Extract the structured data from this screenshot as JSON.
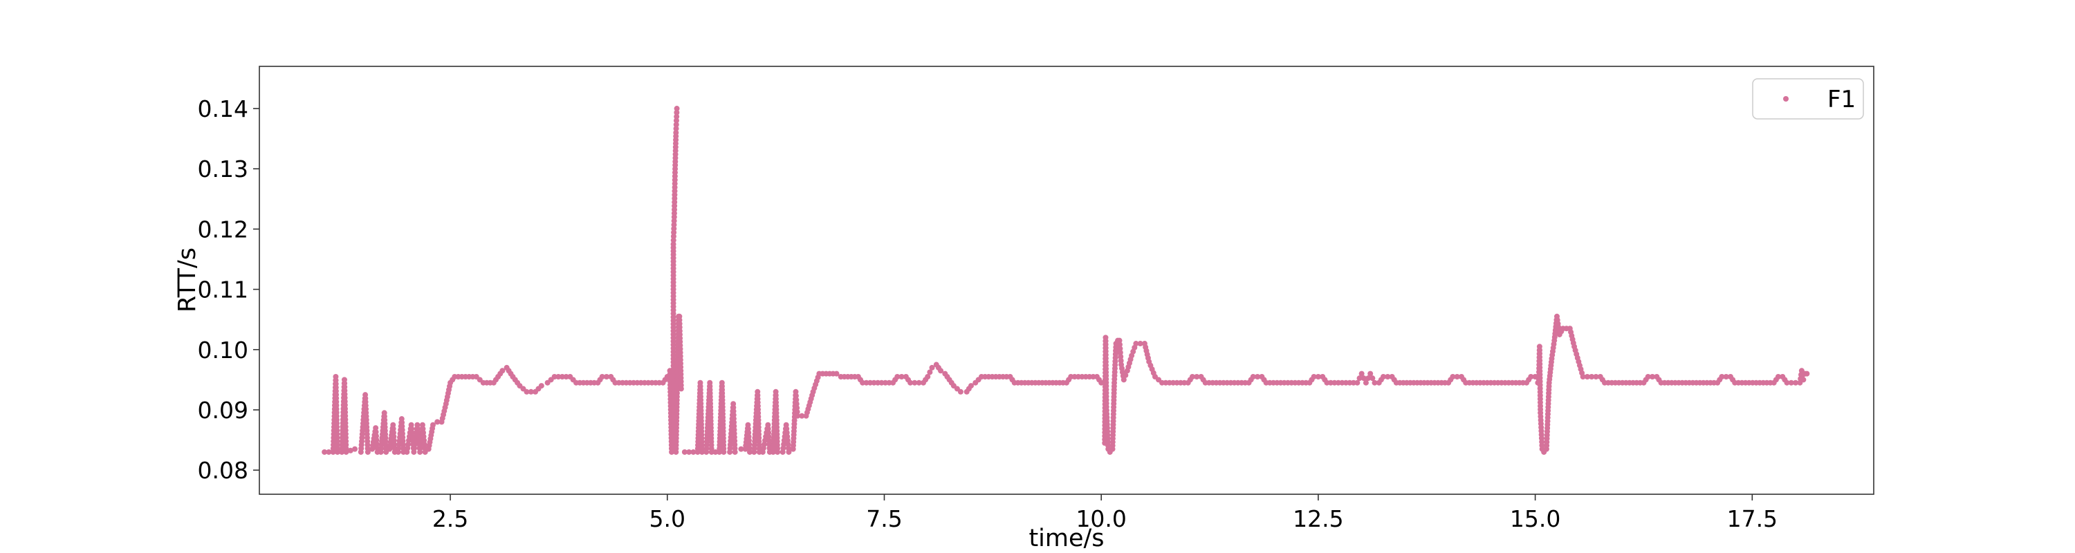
{
  "chart_data": {
    "type": "scatter",
    "title": "",
    "xlabel": "time/s",
    "ylabel": "RTT/s",
    "xlim": [
      0.3,
      18.9
    ],
    "ylim": [
      0.076,
      0.147
    ],
    "x_ticks": [
      2.5,
      5.0,
      7.5,
      10.0,
      12.5,
      15.0,
      17.5
    ],
    "x_tick_labels": [
      "2.5",
      "5.0",
      "7.5",
      "10.0",
      "12.5",
      "15.0",
      "17.5"
    ],
    "y_ticks": [
      0.08,
      0.09,
      0.1,
      0.11,
      0.12,
      0.13,
      0.14
    ],
    "y_tick_labels": [
      "0.08",
      "0.09",
      "0.10",
      "0.11",
      "0.12",
      "0.13",
      "0.14"
    ],
    "grid": false,
    "legend_position": "top-right",
    "series": [
      {
        "name": "F1",
        "color": "#d5729a",
        "marker": "circle",
        "segments": [
          [
            [
              1.05,
              0.083
            ],
            [
              1.15,
              0.083
            ],
            [
              1.18,
              0.0955
            ],
            [
              1.2,
              0.083
            ],
            [
              1.25,
              0.083
            ],
            [
              1.28,
              0.095
            ],
            [
              1.3,
              0.083
            ],
            [
              1.4,
              0.0835
            ],
            [
              1.47,
              0.083
            ],
            [
              1.52,
              0.0925
            ],
            [
              1.55,
              0.083
            ],
            [
              1.6,
              0.0835
            ],
            [
              1.64,
              0.087
            ],
            [
              1.66,
              0.083
            ],
            [
              1.7,
              0.083
            ],
            [
              1.74,
              0.0895
            ],
            [
              1.76,
              0.083
            ],
            [
              1.8,
              0.0835
            ],
            [
              1.84,
              0.0875
            ],
            [
              1.86,
              0.083
            ],
            [
              1.9,
              0.083
            ],
            [
              1.94,
              0.0885
            ],
            [
              1.96,
              0.083
            ],
            [
              2.0,
              0.083
            ],
            [
              2.05,
              0.0875
            ],
            [
              2.08,
              0.083
            ],
            [
              2.12,
              0.0875
            ],
            [
              2.15,
              0.083
            ],
            [
              2.18,
              0.0875
            ],
            [
              2.21,
              0.083
            ],
            [
              2.25,
              0.0835
            ],
            [
              2.3,
              0.0875
            ],
            [
              2.35,
              0.088
            ],
            [
              2.4,
              0.088
            ],
            [
              2.45,
              0.091
            ],
            [
              2.5,
              0.0945
            ],
            [
              2.55,
              0.0955
            ],
            [
              2.8,
              0.0955
            ],
            [
              2.88,
              0.0945
            ],
            [
              3.0,
              0.0945
            ],
            [
              3.05,
              0.0955
            ],
            [
              3.1,
              0.0965
            ],
            [
              3.15,
              0.097
            ],
            [
              3.22,
              0.0955
            ],
            [
              3.3,
              0.094
            ],
            [
              3.38,
              0.093
            ],
            [
              3.48,
              0.093
            ],
            [
              3.55,
              0.094
            ],
            [
              3.62,
              0.0945
            ],
            [
              3.7,
              0.0955
            ],
            [
              3.88,
              0.0955
            ],
            [
              3.95,
              0.0945
            ],
            [
              4.2,
              0.0945
            ],
            [
              4.25,
              0.0955
            ],
            [
              4.35,
              0.0955
            ],
            [
              4.4,
              0.0945
            ],
            [
              4.95,
              0.0945
            ],
            [
              5.0,
              0.0955
            ],
            [
              5.03,
              0.0965
            ],
            [
              5.05,
              0.083
            ]
          ],
          [
            [
              5.07,
              0.0835
            ],
            [
              5.07,
              0.1175
            ],
            [
              5.08,
              0.122
            ],
            [
              5.09,
              0.13
            ],
            [
              5.1,
              0.136
            ],
            [
              5.11,
              0.14
            ]
          ],
          [
            [
              5.1,
              0.083
            ],
            [
              5.12,
              0.0985
            ],
            [
              5.13,
              0.1055
            ],
            [
              5.14,
              0.1055
            ],
            [
              5.16,
              0.0935
            ]
          ],
          [
            [
              5.2,
              0.083
            ],
            [
              5.35,
              0.083
            ],
            [
              5.38,
              0.0945
            ],
            [
              5.4,
              0.083
            ],
            [
              5.45,
              0.083
            ],
            [
              5.49,
              0.0945
            ],
            [
              5.51,
              0.083
            ],
            [
              5.6,
              0.083
            ],
            [
              5.63,
              0.0945
            ],
            [
              5.65,
              0.083
            ],
            [
              5.72,
              0.083
            ],
            [
              5.76,
              0.091
            ],
            [
              5.78,
              0.083
            ],
            [
              5.85,
              0.0835
            ],
            [
              5.9,
              0.0835
            ],
            [
              5.93,
              0.0875
            ],
            [
              5.95,
              0.083
            ],
            [
              6.0,
              0.083
            ],
            [
              6.04,
              0.093
            ],
            [
              6.06,
              0.083
            ],
            [
              6.1,
              0.083
            ],
            [
              6.16,
              0.0875
            ],
            [
              6.18,
              0.083
            ],
            [
              6.22,
              0.083
            ],
            [
              6.25,
              0.093
            ],
            [
              6.27,
              0.083
            ],
            [
              6.33,
              0.083
            ],
            [
              6.37,
              0.0875
            ],
            [
              6.4,
              0.083
            ],
            [
              6.45,
              0.0835
            ],
            [
              6.48,
              0.093
            ],
            [
              6.5,
              0.089
            ],
            [
              6.6,
              0.089
            ],
            [
              6.68,
              0.093
            ],
            [
              6.75,
              0.096
            ],
            [
              6.95,
              0.096
            ],
            [
              7.0,
              0.0955
            ],
            [
              7.2,
              0.0955
            ],
            [
              7.25,
              0.0945
            ],
            [
              7.6,
              0.0945
            ],
            [
              7.65,
              0.0955
            ],
            [
              7.75,
              0.0955
            ],
            [
              7.8,
              0.0945
            ],
            [
              7.95,
              0.0945
            ],
            [
              8.0,
              0.0955
            ],
            [
              8.05,
              0.097
            ],
            [
              8.1,
              0.0975
            ],
            [
              8.15,
              0.0965
            ],
            [
              8.2,
              0.096
            ],
            [
              8.25,
              0.095
            ],
            [
              8.3,
              0.094
            ],
            [
              8.38,
              0.093
            ],
            [
              8.45,
              0.093
            ],
            [
              8.5,
              0.094
            ],
            [
              8.55,
              0.0945
            ],
            [
              8.62,
              0.0955
            ],
            [
              8.95,
              0.0955
            ],
            [
              9.0,
              0.0945
            ],
            [
              9.6,
              0.0945
            ],
            [
              9.65,
              0.0955
            ],
            [
              9.95,
              0.0955
            ],
            [
              10.0,
              0.0945
            ],
            [
              10.03,
              0.0945
            ]
          ],
          [
            [
              10.04,
              0.0845
            ],
            [
              10.05,
              0.102
            ],
            [
              10.06,
              0.0905
            ],
            [
              10.08,
              0.0835
            ],
            [
              10.1,
              0.083
            ],
            [
              10.13,
              0.0835
            ],
            [
              10.15,
              0.0945
            ],
            [
              10.17,
              0.101
            ],
            [
              10.19,
              0.1015
            ],
            [
              10.21,
              0.1015
            ],
            [
              10.23,
              0.0975
            ],
            [
              10.26,
              0.095
            ],
            [
              10.3,
              0.0965
            ],
            [
              10.35,
              0.099
            ],
            [
              10.4,
              0.101
            ],
            [
              10.5,
              0.101
            ],
            [
              10.55,
              0.098
            ],
            [
              10.62,
              0.0955
            ],
            [
              10.7,
              0.0945
            ],
            [
              11.0,
              0.0945
            ],
            [
              11.05,
              0.0955
            ],
            [
              11.15,
              0.0955
            ],
            [
              11.2,
              0.0945
            ],
            [
              11.7,
              0.0945
            ],
            [
              11.75,
              0.0955
            ],
            [
              11.85,
              0.0955
            ],
            [
              11.9,
              0.0945
            ],
            [
              12.4,
              0.0945
            ],
            [
              12.45,
              0.0955
            ],
            [
              12.55,
              0.0955
            ],
            [
              12.6,
              0.0945
            ],
            [
              12.95,
              0.0945
            ],
            [
              13.0,
              0.096
            ],
            [
              13.05,
              0.0945
            ],
            [
              13.1,
              0.096
            ],
            [
              13.15,
              0.0945
            ],
            [
              13.2,
              0.0945
            ],
            [
              13.25,
              0.0955
            ],
            [
              13.35,
              0.0955
            ],
            [
              13.4,
              0.0945
            ],
            [
              14.0,
              0.0945
            ],
            [
              14.05,
              0.0955
            ],
            [
              14.15,
              0.0955
            ],
            [
              14.2,
              0.0945
            ],
            [
              14.9,
              0.0945
            ],
            [
              14.95,
              0.0955
            ],
            [
              15.0,
              0.0955
            ],
            [
              15.03,
              0.0945
            ]
          ],
          [
            [
              15.04,
              0.0945
            ],
            [
              15.05,
              0.1005
            ],
            [
              15.06,
              0.0895
            ],
            [
              15.08,
              0.0835
            ],
            [
              15.1,
              0.083
            ],
            [
              15.13,
              0.0835
            ],
            [
              15.16,
              0.0945
            ],
            [
              15.19,
              0.0985
            ],
            [
              15.22,
              0.1015
            ],
            [
              15.25,
              0.1055
            ],
            [
              15.28,
              0.1025
            ],
            [
              15.32,
              0.1035
            ],
            [
              15.4,
              0.1035
            ],
            [
              15.45,
              0.1005
            ],
            [
              15.5,
              0.098
            ],
            [
              15.55,
              0.0955
            ],
            [
              15.6,
              0.0955
            ],
            [
              15.75,
              0.0955
            ],
            [
              15.8,
              0.0945
            ],
            [
              16.25,
              0.0945
            ],
            [
              16.3,
              0.0955
            ],
            [
              16.4,
              0.0955
            ],
            [
              16.45,
              0.0945
            ],
            [
              17.1,
              0.0945
            ],
            [
              17.15,
              0.0955
            ],
            [
              17.25,
              0.0955
            ],
            [
              17.3,
              0.0945
            ],
            [
              17.75,
              0.0945
            ],
            [
              17.8,
              0.0955
            ],
            [
              17.85,
              0.0955
            ],
            [
              17.9,
              0.0945
            ],
            [
              18.05,
              0.0945
            ],
            [
              18.07,
              0.0965
            ],
            [
              18.09,
              0.095
            ],
            [
              18.11,
              0.096
            ],
            [
              18.13,
              0.096
            ]
          ]
        ]
      }
    ]
  }
}
